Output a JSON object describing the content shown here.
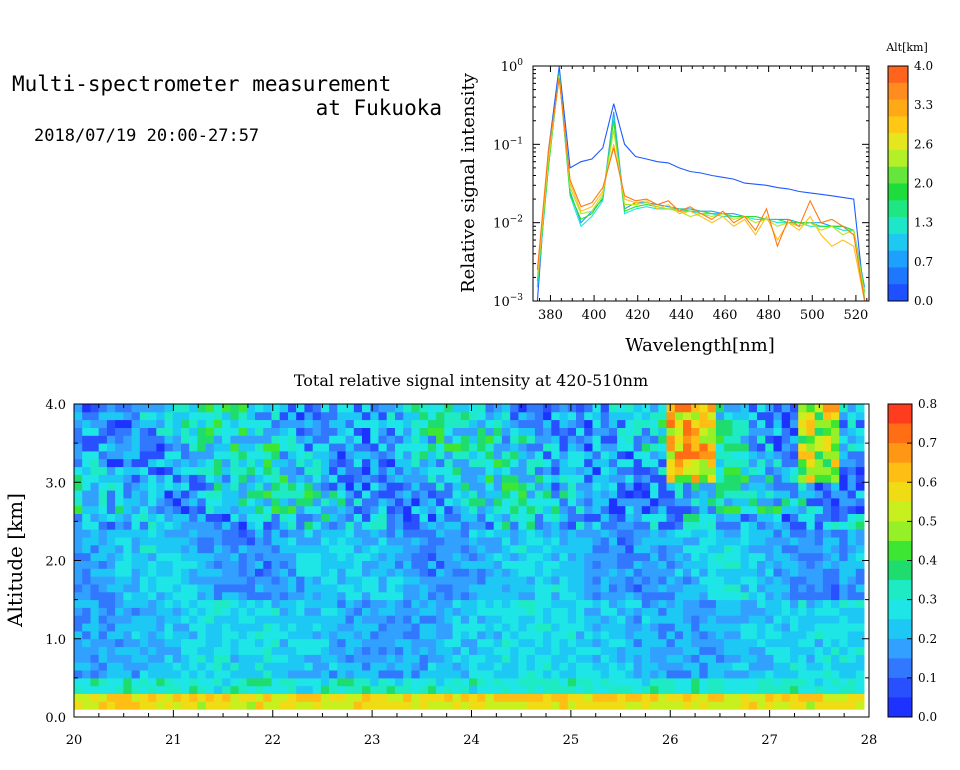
{
  "header": {
    "title_line1": "Multi-spectrometer measurement",
    "title_line2": "at Fukuoka",
    "subtitle": "2018/07/19 20:00-27:57"
  },
  "chart_data": [
    {
      "type": "line",
      "xlabel": "Wavelength[nm]",
      "ylabel": "Relative signal intensity",
      "yscale": "log",
      "xlim": [
        372,
        526
      ],
      "ylim": [
        0.001,
        1
      ],
      "x_ticks": [
        380,
        400,
        420,
        440,
        460,
        480,
        500,
        520
      ],
      "y_ticks": [
        {
          "value": 1,
          "mant": "10",
          "exp": "0"
        },
        {
          "value": 0.1,
          "mant": "10",
          "exp": "−1"
        },
        {
          "value": 0.01,
          "mant": "10",
          "exp": "−2"
        },
        {
          "value": 0.001,
          "mant": "10",
          "exp": "−3"
        }
      ],
      "x": [
        374,
        379,
        384,
        389,
        394,
        399,
        404,
        409,
        414,
        419,
        424,
        429,
        434,
        439,
        444,
        449,
        454,
        459,
        464,
        469,
        474,
        479,
        484,
        489,
        494,
        499,
        504,
        509,
        514,
        519,
        524
      ],
      "series": [
        {
          "alt": 0.0,
          "color": "#1e5aff",
          "values": [
            0.001,
            0.08,
            0.98,
            0.05,
            0.06,
            0.065,
            0.09,
            0.33,
            0.1,
            0.07,
            0.065,
            0.06,
            0.058,
            0.05,
            0.045,
            0.043,
            0.04,
            0.038,
            0.036,
            0.032,
            0.031,
            0.03,
            0.028,
            0.027,
            0.025,
            0.024,
            0.023,
            0.022,
            0.021,
            0.02,
            0.001
          ]
        },
        {
          "alt": 0.7,
          "color": "#1ea0ff",
          "values": [
            0.0015,
            0.05,
            0.85,
            0.025,
            0.01,
            0.014,
            0.02,
            0.26,
            0.015,
            0.018,
            0.018,
            0.017,
            0.016,
            0.015,
            0.015,
            0.014,
            0.014,
            0.013,
            0.013,
            0.012,
            0.012,
            0.011,
            0.011,
            0.011,
            0.01,
            0.01,
            0.01,
            0.009,
            0.009,
            0.008,
            0.0015
          ]
        },
        {
          "alt": 1.3,
          "color": "#1ee6dc",
          "values": [
            0.0015,
            0.05,
            0.8,
            0.022,
            0.009,
            0.012,
            0.019,
            0.22,
            0.013,
            0.015,
            0.016,
            0.015,
            0.015,
            0.014,
            0.014,
            0.013,
            0.013,
            0.012,
            0.012,
            0.012,
            0.011,
            0.011,
            0.01,
            0.01,
            0.01,
            0.009,
            0.009,
            0.009,
            0.008,
            0.008,
            0.0013
          ]
        },
        {
          "alt": 2.0,
          "color": "#32dc32",
          "values": [
            0.0018,
            0.05,
            0.8,
            0.023,
            0.011,
            0.013,
            0.021,
            0.2,
            0.014,
            0.016,
            0.017,
            0.016,
            0.015,
            0.015,
            0.014,
            0.014,
            0.013,
            0.013,
            0.012,
            0.012,
            0.012,
            0.011,
            0.011,
            0.01,
            0.01,
            0.01,
            0.009,
            0.009,
            0.009,
            0.008,
            0.0013
          ]
        },
        {
          "alt": 2.6,
          "color": "#b4e628",
          "values": [
            0.002,
            0.06,
            0.75,
            0.028,
            0.013,
            0.014,
            0.023,
            0.15,
            0.017,
            0.017,
            0.018,
            0.016,
            0.015,
            0.014,
            0.012,
            0.013,
            0.012,
            0.013,
            0.011,
            0.012,
            0.01,
            0.011,
            0.009,
            0.01,
            0.009,
            0.01,
            0.008,
            0.009,
            0.007,
            0.008,
            0.0012
          ]
        },
        {
          "alt": 3.3,
          "color": "#ffbe1e",
          "values": [
            0.002,
            0.07,
            0.7,
            0.032,
            0.014,
            0.016,
            0.025,
            0.1,
            0.02,
            0.018,
            0.019,
            0.015,
            0.017,
            0.013,
            0.014,
            0.012,
            0.01,
            0.012,
            0.009,
            0.011,
            0.007,
            0.012,
            0.006,
            0.01,
            0.008,
            0.012,
            0.007,
            0.005,
            0.006,
            0.005,
            0.001
          ]
        },
        {
          "alt": 4.0,
          "color": "#ff7814",
          "values": [
            0.0025,
            0.08,
            0.7,
            0.035,
            0.016,
            0.018,
            0.028,
            0.09,
            0.022,
            0.019,
            0.02,
            0.017,
            0.019,
            0.014,
            0.016,
            0.013,
            0.011,
            0.014,
            0.01,
            0.012,
            0.008,
            0.015,
            0.005,
            0.011,
            0.009,
            0.019,
            0.01,
            0.011,
            0.009,
            0.007,
            0.001
          ]
        }
      ],
      "colorbar": {
        "label": "Alt[km]",
        "ticks": [
          "4.0",
          "3.3",
          "2.6",
          "2.0",
          "1.3",
          "0.7",
          "0.0"
        ],
        "colors": [
          "#ff641e",
          "#ff8c1e",
          "#ffaa14",
          "#ffc814",
          "#e6e61e",
          "#b4f028",
          "#64e63c",
          "#1edc3c",
          "#1ee682",
          "#1ee6c8",
          "#1ec8f0",
          "#1ea0ff",
          "#1e78ff",
          "#1e50ff"
        ]
      }
    },
    {
      "type": "heatmap",
      "title": "Total relative signal intensity at 420-510nm",
      "ylabel": "Altitude [km]",
      "xlim": [
        20,
        28
      ],
      "ylim": [
        0,
        4
      ],
      "x_ticks": [
        "20",
        "21",
        "22",
        "23",
        "24",
        "25",
        "26",
        "27",
        "28"
      ],
      "y_ticks": [
        "0.0",
        "1.0",
        "2.0",
        "3.0",
        "4.0"
      ],
      "data_xrange": [
        20.0,
        27.95
      ],
      "data_yrange": [
        0.1,
        4.0
      ],
      "colorbar": {
        "ticks": [
          "0.8",
          "0.7",
          "0.6",
          "0.5",
          "0.4",
          "0.3",
          "0.2",
          "0.1",
          "0.0"
        ],
        "range": [
          0,
          0.8
        ],
        "colors": [
          "#ff3c1e",
          "#ff6e14",
          "#ff9614",
          "#ffbe14",
          "#f0dc14",
          "#c8f01e",
          "#96f028",
          "#3ce632",
          "#1edc6e",
          "#1eebc3",
          "#1ee6e6",
          "#1ec8f5",
          "#32a0ff",
          "#3278ff",
          "#2850ff",
          "#1e32ff"
        ]
      }
    }
  ]
}
